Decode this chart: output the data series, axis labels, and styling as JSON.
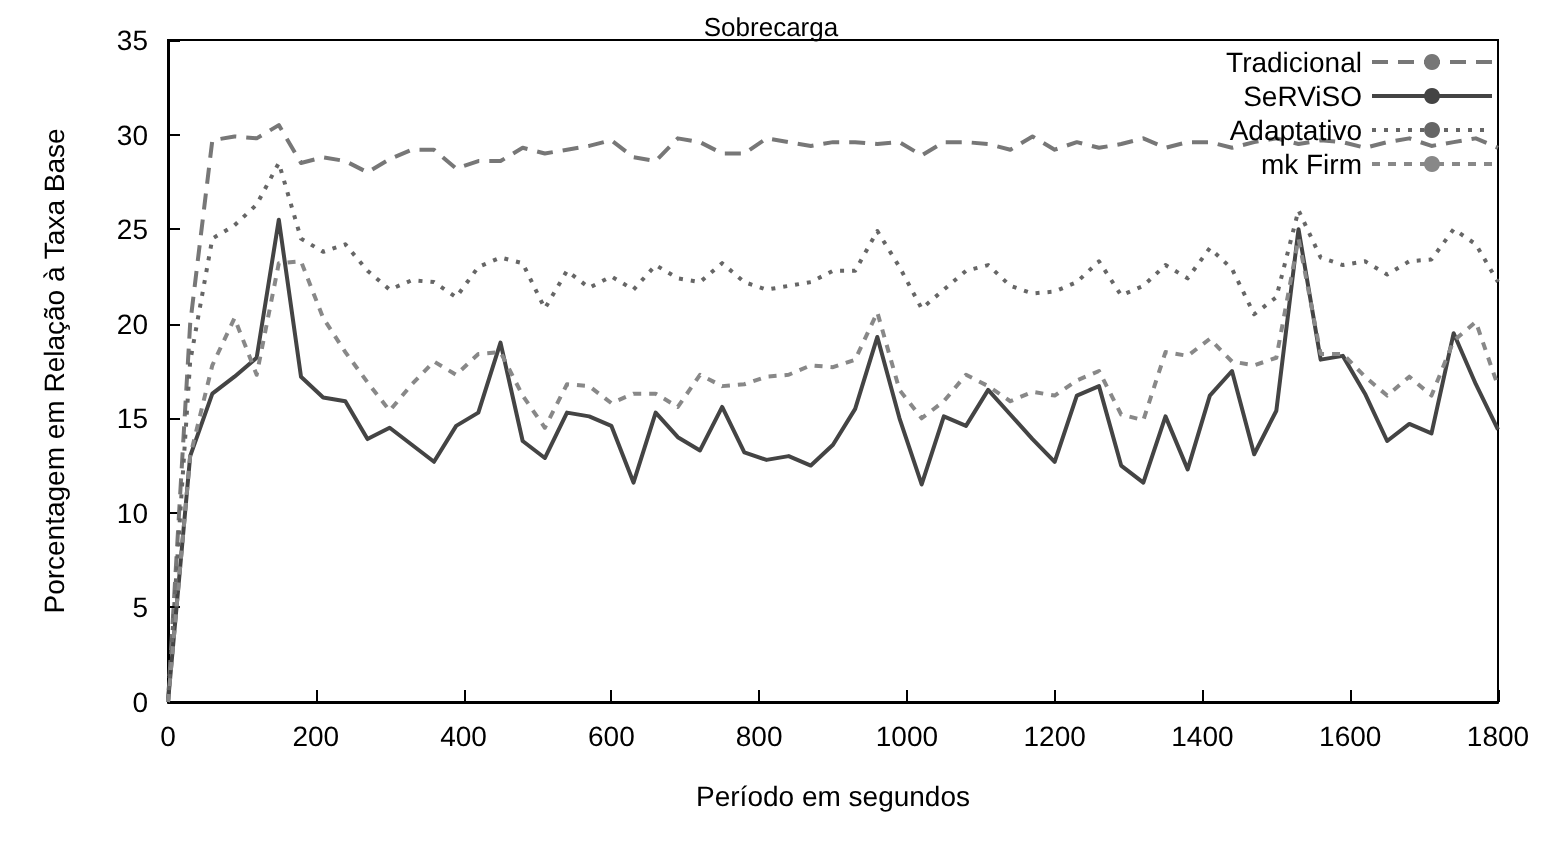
{
  "chart_data": {
    "type": "line",
    "title": "Sobrecarga",
    "xlabel": "Período em segundos",
    "ylabel": "Porcentagem em Relação à Taxa Base",
    "x": [
      0,
      30,
      60,
      90,
      120,
      150,
      180,
      210,
      240,
      270,
      300,
      330,
      360,
      390,
      420,
      450,
      480,
      510,
      540,
      570,
      600,
      630,
      660,
      690,
      720,
      750,
      780,
      810,
      840,
      870,
      900,
      930,
      960,
      990,
      1020,
      1050,
      1080,
      1110,
      1140,
      1170,
      1200,
      1230,
      1260,
      1290,
      1320,
      1350,
      1380,
      1410,
      1440,
      1470,
      1500,
      1530,
      1560,
      1590,
      1620,
      1650,
      1680,
      1710,
      1740,
      1770,
      1800
    ],
    "series": [
      {
        "name": "Tradicional",
        "color": "#777777",
        "line_style": "dashed",
        "values": [
          0,
          20,
          29.7,
          29.9,
          29.8,
          30.5,
          28.5,
          28.8,
          28.6,
          28,
          28.7,
          29.2,
          29.2,
          28.2,
          28.6,
          28.6,
          29.3,
          29,
          29.2,
          29.4,
          29.7,
          28.8,
          28.6,
          29.8,
          29.6,
          29,
          29,
          29.8,
          29.6,
          29.4,
          29.6,
          29.6,
          29.5,
          29.6,
          28.9,
          29.6,
          29.6,
          29.5,
          29.2,
          29.9,
          29.2,
          29.6,
          29.3,
          29.5,
          29.8,
          29.3,
          29.6,
          29.6,
          29.3,
          29.6,
          29.8,
          29.5,
          29.7,
          29.6,
          29.3,
          29.6,
          29.8,
          29.4,
          29.6,
          29.8,
          29.3
        ]
      },
      {
        "name": "SeRViSO",
        "color": "#444444",
        "line_style": "solid",
        "values": [
          0,
          13,
          16.3,
          17.2,
          18.2,
          25.5,
          17.2,
          16.1,
          15.9,
          13.9,
          14.5,
          13.6,
          12.7,
          14.6,
          15.3,
          19,
          13.8,
          12.9,
          15.3,
          15.1,
          14.6,
          11.6,
          15.3,
          14,
          13.3,
          15.6,
          13.2,
          12.8,
          13,
          12.5,
          13.6,
          15.5,
          19.3,
          15,
          11.5,
          15.1,
          14.6,
          16.5,
          15.2,
          13.9,
          12.7,
          16.2,
          16.7,
          12.5,
          11.6,
          15.1,
          12.3,
          16.2,
          17.5,
          13.1,
          15.4,
          25,
          18.1,
          18.3,
          16.3,
          13.8,
          14.7,
          14.2,
          19.5,
          16.8,
          14.4
        ]
      },
      {
        "name": "Adaptativo",
        "color": "#666666",
        "line_style": "dotted",
        "values": [
          0,
          18,
          24.5,
          25.2,
          26.3,
          28.5,
          24.5,
          23.8,
          24.2,
          22.8,
          21.8,
          22.3,
          22.2,
          21.4,
          23,
          23.5,
          23.2,
          20.8,
          22.8,
          21.9,
          22.5,
          21.8,
          23.1,
          22.4,
          22.2,
          23.2,
          22.2,
          21.8,
          22,
          22.2,
          22.8,
          22.8,
          24.9,
          23,
          20.8,
          21.8,
          22.8,
          23.1,
          22,
          21.6,
          21.7,
          22.2,
          23.3,
          21.5,
          22,
          23.1,
          22.4,
          24,
          22.9,
          20.5,
          21.4,
          26,
          23.5,
          23.1,
          23.3,
          22.6,
          23.3,
          23.4,
          25,
          24.2,
          22.2
        ]
      },
      {
        "name": "mk Firm",
        "color": "#888888",
        "line_style": "dashed",
        "values": [
          0,
          13,
          17.8,
          20.3,
          17.3,
          23.2,
          23.3,
          20.3,
          18.5,
          16.9,
          15.4,
          16.8,
          18,
          17.3,
          18.4,
          18.5,
          16.2,
          14.5,
          16.8,
          16.7,
          15.8,
          16.3,
          16.3,
          15.6,
          17.3,
          16.7,
          16.8,
          17.2,
          17.3,
          17.8,
          17.7,
          18.1,
          20.6,
          16.5,
          15,
          15.9,
          17.3,
          16.7,
          15.9,
          16.4,
          16.2,
          17,
          17.5,
          15.2,
          14.9,
          18.5,
          18.3,
          19.2,
          18,
          17.8,
          18.2,
          24.5,
          18.4,
          18.4,
          17.2,
          16.2,
          17.2,
          16.2,
          19.1,
          20.1,
          16.7
        ]
      }
    ],
    "xlim": [
      0,
      1800
    ],
    "xticks": [
      0,
      200,
      400,
      600,
      800,
      1000,
      1200,
      1400,
      1600,
      1800
    ],
    "ylim": [
      0,
      35
    ],
    "yticks": [
      0,
      5,
      10,
      15,
      20,
      25,
      30,
      35
    ],
    "grid": false,
    "legend": "top right",
    "marker": "none"
  }
}
